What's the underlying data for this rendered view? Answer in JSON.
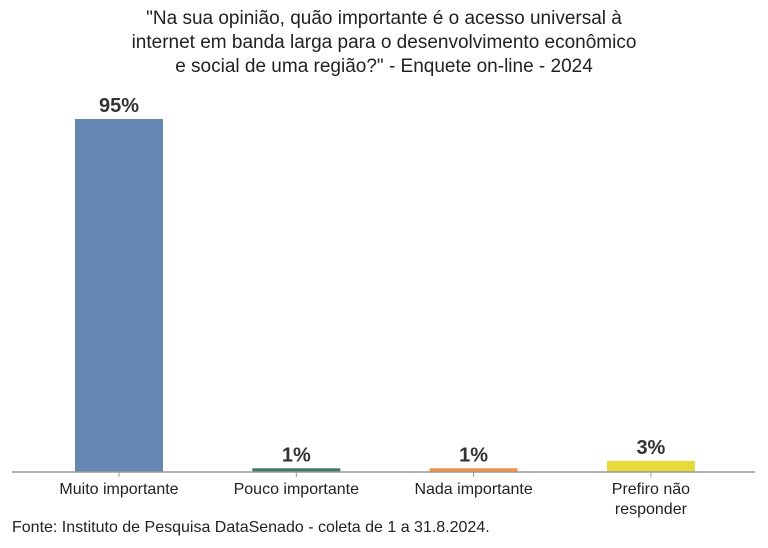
{
  "chart_data": {
    "type": "bar",
    "title": [
      "\"Na sua opinião, quão importante é o acesso universal à",
      "internet em banda larga para o desenvolvimento econômico",
      "e social de uma região?\" - Enquete on-line - 2024"
    ],
    "categories": [
      [
        "Muito importante"
      ],
      [
        "Pouco importante"
      ],
      [
        "Nada importante"
      ],
      [
        "Prefiro não",
        "responder"
      ]
    ],
    "values": [
      95,
      1,
      1,
      3
    ],
    "data_labels": [
      "95%",
      "1%",
      "1%",
      "3%"
    ],
    "colors": [
      "#6588b2",
      "#3d7a5e",
      "#f5923e",
      "#e6d93c"
    ],
    "ylim": [
      0,
      100
    ],
    "grid": false,
    "source": "Fonte: Instituto de Pesquisa DataSenado - coleta de 1 a 31.8.2024."
  }
}
